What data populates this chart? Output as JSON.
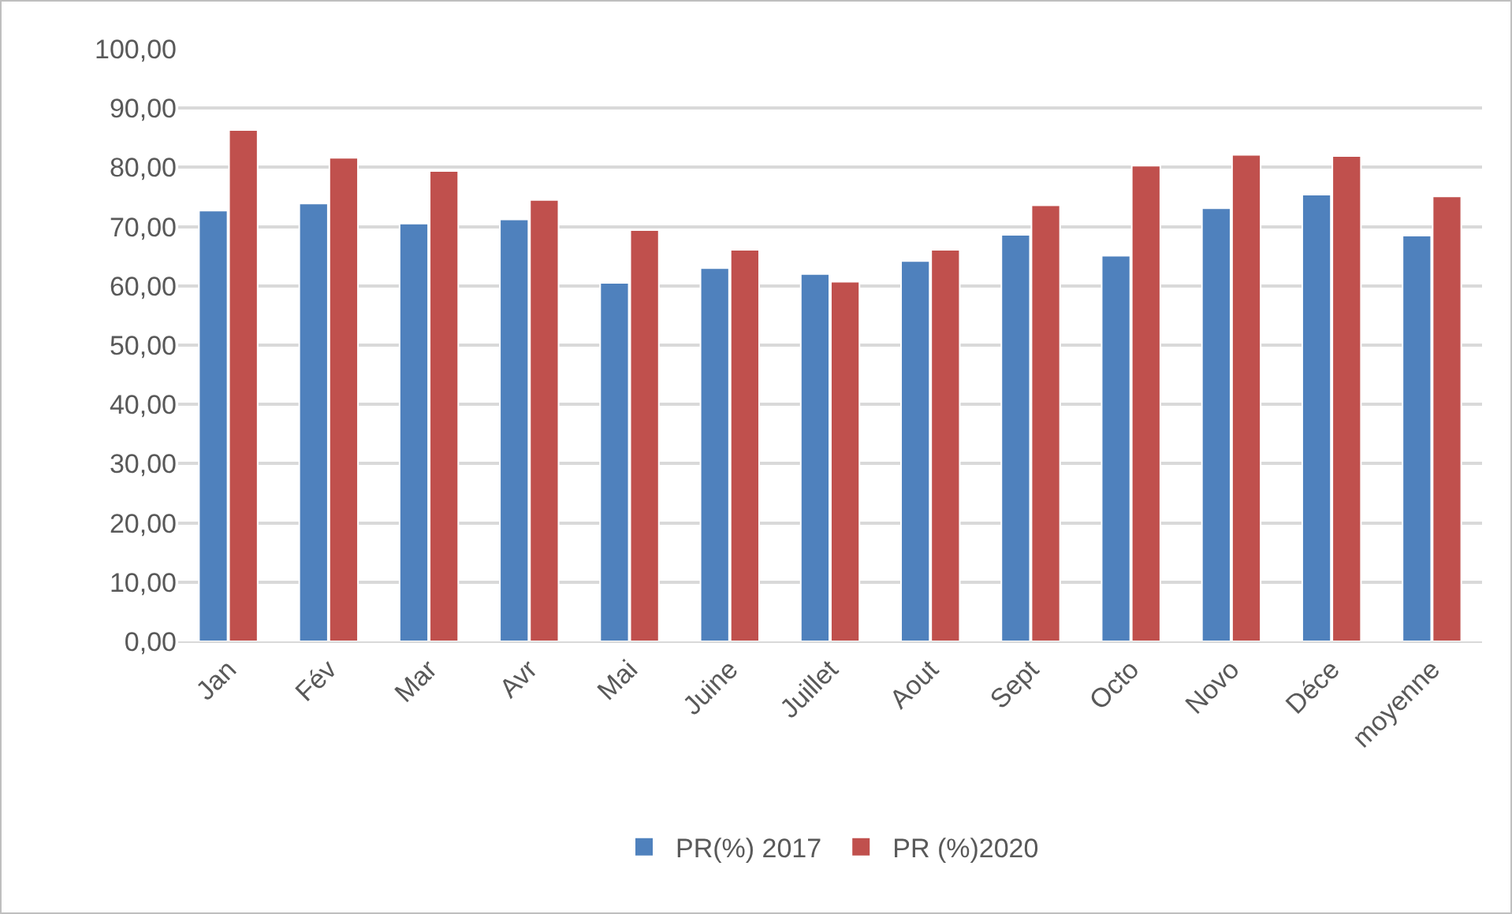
{
  "chart_data": {
    "type": "bar",
    "categories": [
      "Jan",
      "Fév",
      "Mar",
      "Avr",
      "Mai",
      "Juine",
      "Juillet",
      "Aout",
      "Sept",
      "Octo",
      "Novo",
      "Déce",
      "moyenne"
    ],
    "series": [
      {
        "name": "PR(%) 2017",
        "color": "#4f81bd",
        "values": [
          72.7,
          73.9,
          70.5,
          71.2,
          60.5,
          63.0,
          62.0,
          64.2,
          68.6,
          65.1,
          73.1,
          75.4,
          68.5
        ]
      },
      {
        "name": "PR (%)2020",
        "color": "#c0504d",
        "values": [
          86.3,
          81.6,
          79.4,
          74.5,
          69.4,
          66.1,
          60.7,
          66.1,
          73.6,
          80.3,
          82.1,
          81.9,
          75.1
        ]
      }
    ],
    "ylim": [
      0,
      100
    ],
    "yticks": [
      {
        "value": 0,
        "label": "0,00"
      },
      {
        "value": 10,
        "label": "10,00"
      },
      {
        "value": 20,
        "label": "20,00"
      },
      {
        "value": 30,
        "label": "30,00"
      },
      {
        "value": 40,
        "label": "40,00"
      },
      {
        "value": 50,
        "label": "50,00"
      },
      {
        "value": 60,
        "label": "60,00"
      },
      {
        "value": 70,
        "label": "70,00"
      },
      {
        "value": 80,
        "label": "80,00"
      },
      {
        "value": 90,
        "label": "90,00"
      },
      {
        "value": 100,
        "label": "100,00"
      }
    ],
    "grid": "y",
    "legend": "bottom"
  }
}
